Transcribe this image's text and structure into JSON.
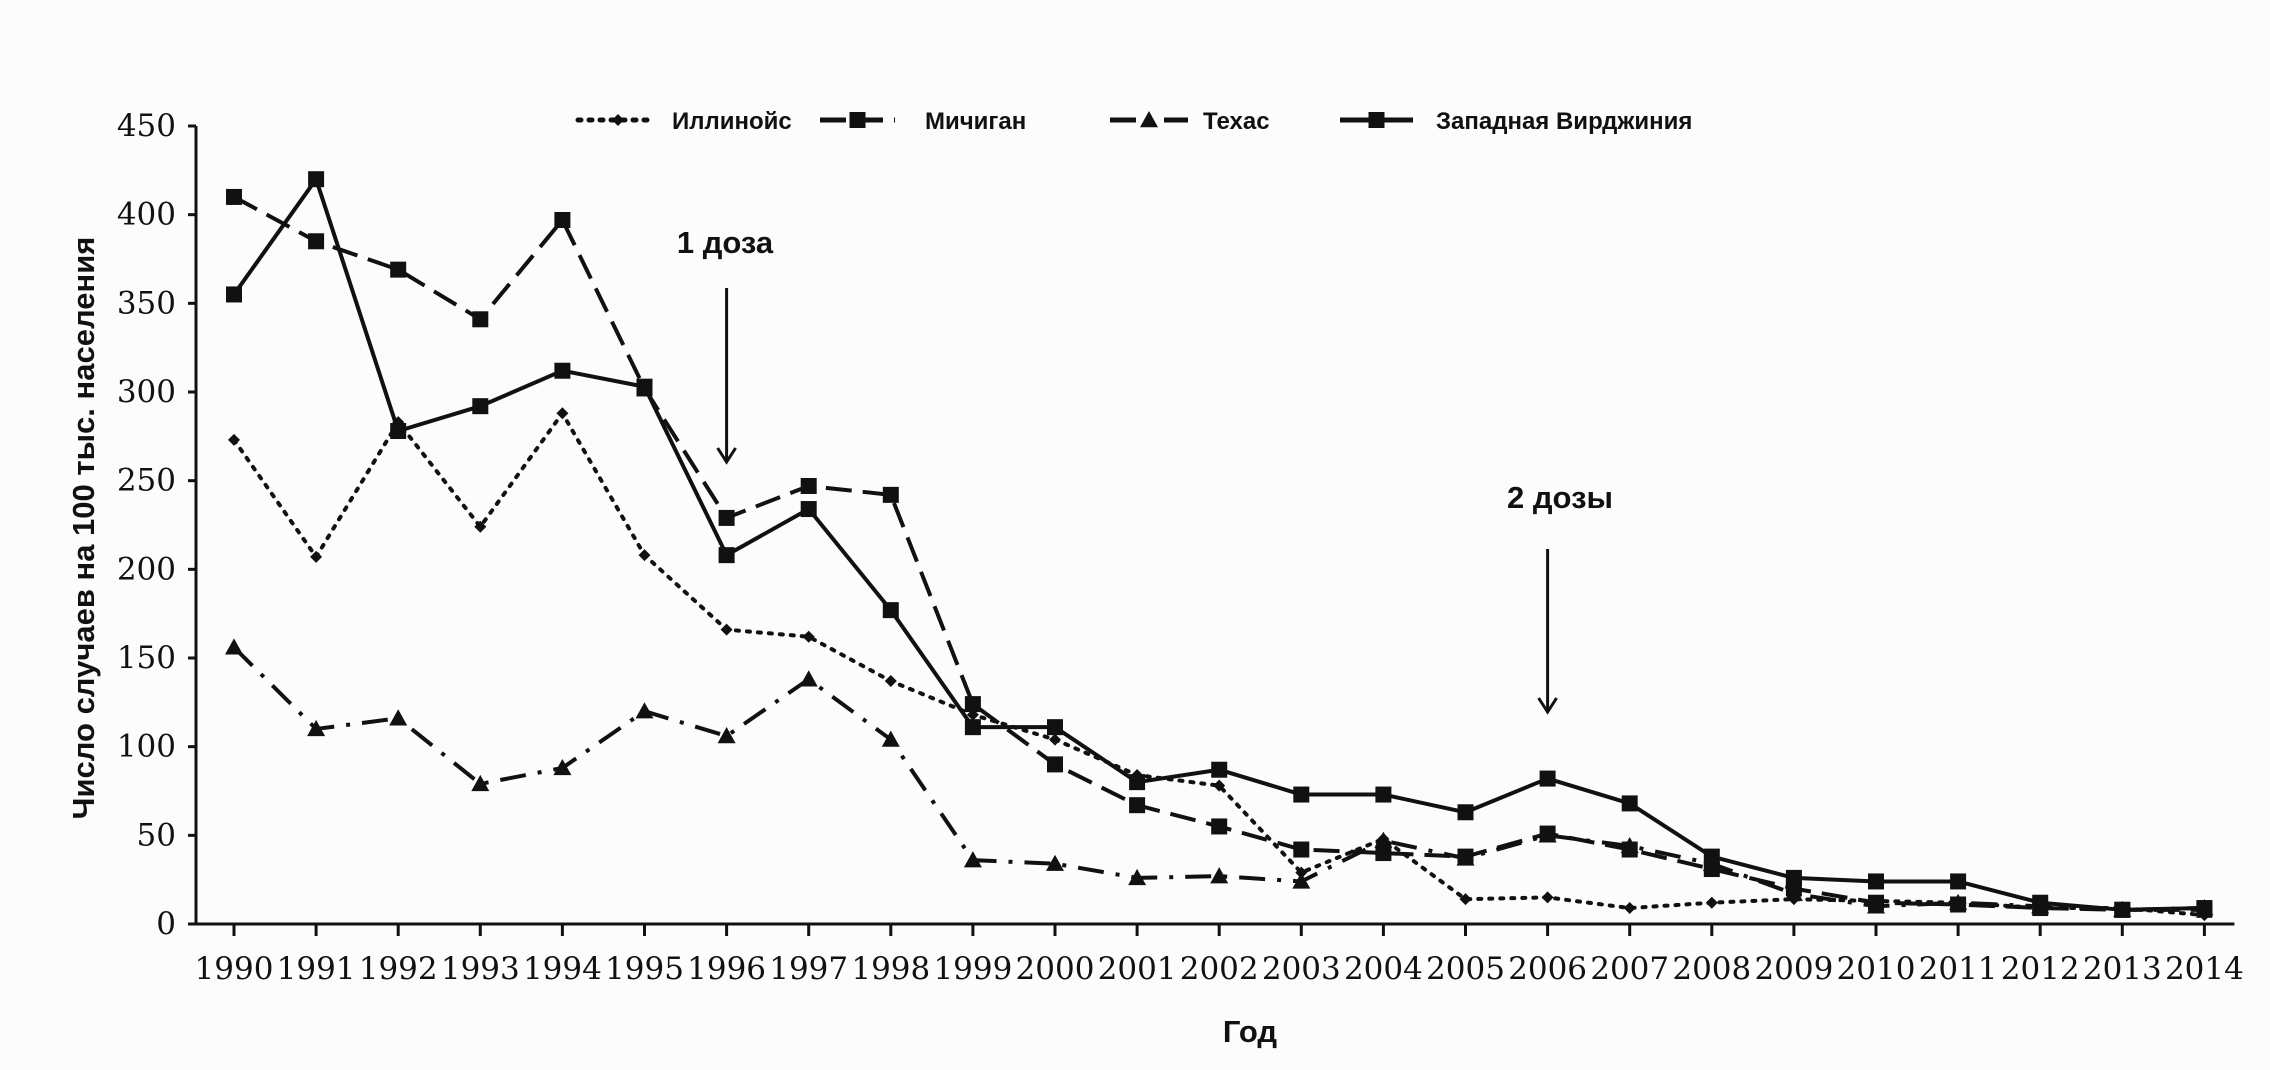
{
  "chart_data": {
    "type": "line",
    "title": "",
    "xlabel": "Год",
    "ylabel": "Число случаев на 100 тыс. населения",
    "ylim": [
      0,
      450
    ],
    "yticks": [
      0,
      50,
      100,
      150,
      200,
      250,
      300,
      350,
      400,
      450
    ],
    "grid": false,
    "legend_position": "top",
    "categories": [
      "1990",
      "1991",
      "1992",
      "1993",
      "1994",
      "1995",
      "1996",
      "1997",
      "1998",
      "1999",
      "2000",
      "2001",
      "2002",
      "2003",
      "2004",
      "2005",
      "2006",
      "2007",
      "2008",
      "2009",
      "2010",
      "2011",
      "2012",
      "2013",
      "2014"
    ],
    "series": [
      {
        "name": "Иллинойс",
        "style": "dotted",
        "marker": "diamond",
        "values": [
          273,
          207,
          283,
          224,
          288,
          208,
          166,
          162,
          137,
          118,
          104,
          84,
          78,
          29,
          48,
          14,
          15,
          9,
          12,
          14,
          13,
          12,
          9,
          9,
          5
        ]
      },
      {
        "name": "Мичиган",
        "style": "dashed",
        "marker": "square",
        "values": [
          410,
          385,
          369,
          341,
          397,
          302,
          229,
          247,
          242,
          124,
          90,
          67,
          55,
          42,
          40,
          38,
          51,
          42,
          31,
          20,
          12,
          11,
          9,
          8,
          8
        ]
      },
      {
        "name": "Техас",
        "style": "dashdot",
        "marker": "triangle",
        "values": [
          156,
          110,
          116,
          79,
          88,
          120,
          106,
          138,
          104,
          36,
          34,
          26,
          27,
          24,
          47,
          37,
          50,
          44,
          34,
          17,
          10,
          12,
          10,
          8,
          9
        ]
      },
      {
        "name": "Западная Вирджиния",
        "style": "solid",
        "marker": "square",
        "values": [
          355,
          420,
          278,
          292,
          312,
          303,
          208,
          234,
          177,
          111,
          111,
          80,
          87,
          73,
          73,
          63,
          82,
          68,
          38,
          26,
          24,
          24,
          12,
          8,
          9
        ]
      }
    ],
    "annotations": [
      {
        "text": "1 доза",
        "year": "1996"
      },
      {
        "text": "2 дозы",
        "year": "2006"
      }
    ]
  }
}
